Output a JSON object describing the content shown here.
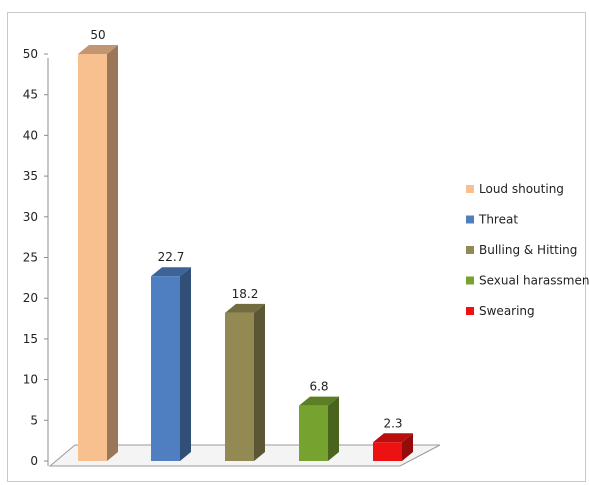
{
  "chart_data": {
    "type": "bar",
    "title": "",
    "xlabel": "",
    "ylabel": "",
    "categories": [
      "Loud shouting",
      "Threat",
      "Bulling & Hitting",
      "Sexual harassment",
      "Swearing"
    ],
    "values": [
      50,
      22.7,
      18.2,
      6.8,
      2.3
    ],
    "data_labels": [
      "50",
      "22.7",
      "18.2",
      "6.8",
      "2.3"
    ],
    "colors": [
      "#f9c08f",
      "#4f7fc0",
      "#938a53",
      "#76a22f",
      "#ee1111"
    ],
    "ylim": [
      0,
      50
    ],
    "yticks": [
      "0",
      "5",
      "10",
      "15",
      "20",
      "25",
      "30",
      "35",
      "40",
      "45",
      "50"
    ],
    "grid": false,
    "style": "3d-columns",
    "legend_position": "right"
  }
}
